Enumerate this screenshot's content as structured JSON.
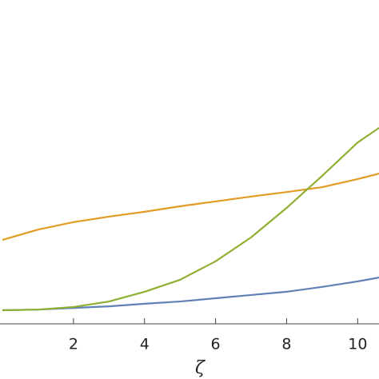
{
  "chart_data": {
    "type": "line",
    "x_label": "ζ",
    "x": [
      0,
      1,
      2,
      3,
      4,
      5,
      6,
      7,
      8,
      9,
      10,
      10.6
    ],
    "series": [
      {
        "color": "#5e81b5",
        "values": [
          0.042,
          0.044,
          0.049,
          0.054,
          0.062,
          0.069,
          0.079,
          0.089,
          0.099,
          0.114,
          0.131,
          0.143
        ]
      },
      {
        "color": "#e19c24",
        "values": [
          0.259,
          0.291,
          0.314,
          0.331,
          0.346,
          0.363,
          0.378,
          0.393,
          0.407,
          0.422,
          0.447,
          0.464
        ]
      },
      {
        "color": "#8fb032",
        "values": [
          0.042,
          0.044,
          0.052,
          0.069,
          0.099,
          0.136,
          0.193,
          0.267,
          0.358,
          0.457,
          0.56,
          0.605
        ]
      }
    ],
    "xlim": [
      0,
      10.6
    ],
    "xticks": [
      2,
      4,
      6,
      8,
      10
    ],
    "ylim": [
      0,
      1
    ]
  }
}
